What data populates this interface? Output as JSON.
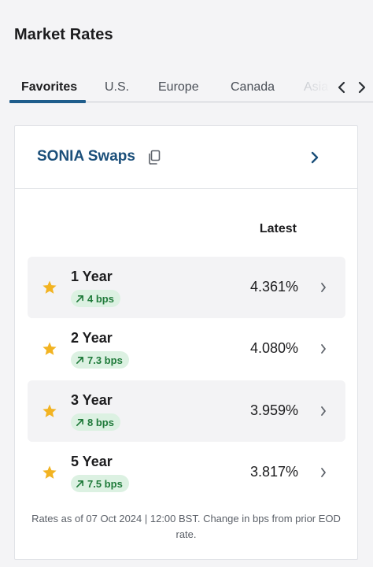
{
  "page": {
    "title": "Market Rates"
  },
  "tabs": [
    {
      "label": "Favorites",
      "active": true
    },
    {
      "label": "U.S.",
      "active": false
    },
    {
      "label": "Europe",
      "active": false
    },
    {
      "label": "Canada",
      "active": false
    },
    {
      "label": "Asia",
      "active": false
    }
  ],
  "card": {
    "title": "SONIA Swaps",
    "column_header": "Latest",
    "rows": [
      {
        "tenor": "1 Year",
        "change": "4 bps",
        "rate": "4.361%",
        "favorite": true
      },
      {
        "tenor": "2 Year",
        "change": "7.3 bps",
        "rate": "4.080%",
        "favorite": true
      },
      {
        "tenor": "3 Year",
        "change": "8 bps",
        "rate": "3.959%",
        "favorite": true
      },
      {
        "tenor": "5 Year",
        "change": "7.5 bps",
        "rate": "3.817%",
        "favorite": true
      }
    ],
    "footnote": "Rates as of 07 Oct 2024 | 12:00 BST. Change in bps from prior EOD rate."
  },
  "colors": {
    "accent": "#1f5d8c",
    "title_blue": "#1b4f7a",
    "star": "#f2b321",
    "badge_bg": "#dcf1e2",
    "badge_text": "#1f7a3a"
  },
  "icons": {
    "copy": "copy-icon",
    "chevron": "chevron-right-icon",
    "star": "star-icon",
    "trend": "arrow-up-right-icon"
  }
}
